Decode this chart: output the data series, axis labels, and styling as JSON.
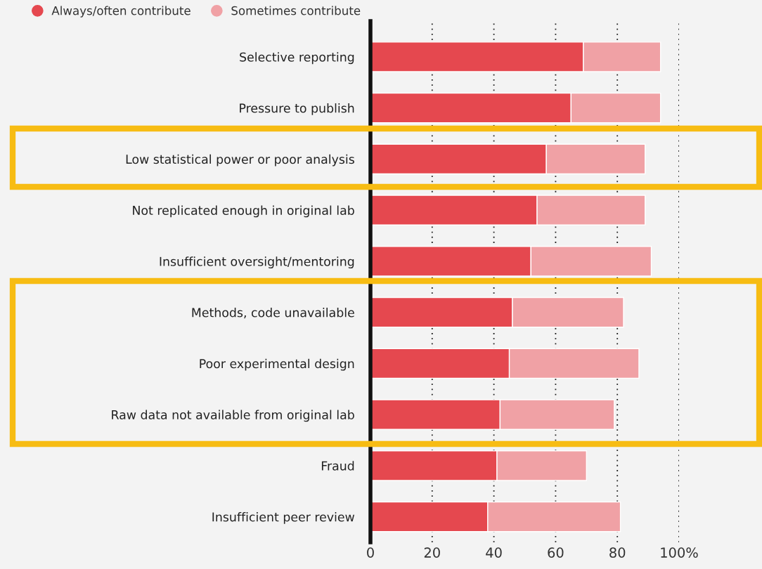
{
  "chart_data": {
    "type": "bar",
    "orientation": "horizontal",
    "stacked": true,
    "categories": [
      "Selective reporting",
      "Pressure to publish",
      "Low statistical power or poor analysis",
      "Not replicated enough in original lab",
      "Insufficient oversight/mentoring",
      "Methods, code unavailable",
      "Poor experimental design",
      "Raw data not available from original lab",
      "Fraud",
      "Insufficient peer review"
    ],
    "series": [
      {
        "name": "Always/often contribute",
        "color": "#e5484f",
        "values": [
          69,
          65,
          57,
          54,
          52,
          46,
          45,
          42,
          41,
          38
        ]
      },
      {
        "name": "Sometimes contribute",
        "color": "#f0a1a5",
        "values": [
          25,
          29,
          32,
          35,
          39,
          36,
          42,
          37,
          29,
          43
        ]
      }
    ],
    "xlim": [
      0,
      100
    ],
    "xticks": [
      0,
      20,
      40,
      60,
      80,
      {
        "value": 100,
        "label": "100%"
      }
    ],
    "grid": "x",
    "legend": "top left",
    "marker": "circle"
  }
}
